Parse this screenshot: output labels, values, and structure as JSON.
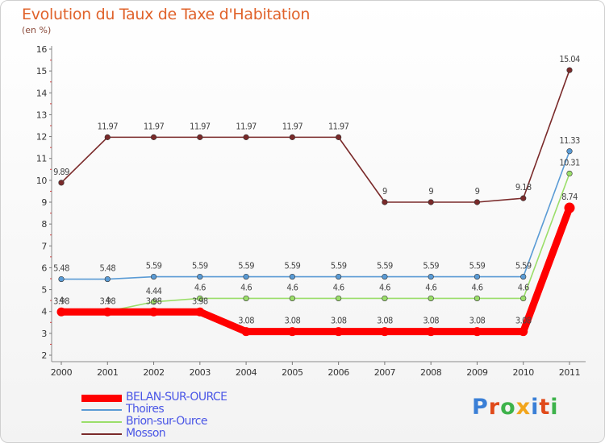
{
  "title": "Evolution du Taux de Taxe d'Habitation",
  "subtitle": "(en %)",
  "logo": {
    "letters": [
      "P",
      "r",
      "o",
      "x",
      "i",
      "t",
      "i"
    ],
    "colors": [
      "#3a7fd6",
      "#e04a1a",
      "#3db24a",
      "#f2a51c",
      "#3a7fd6",
      "#e04a1a",
      "#3db24a"
    ]
  },
  "chart_data": {
    "type": "line",
    "x": [
      "2000",
      "2001",
      "2002",
      "2003",
      "2004",
      "2005",
      "2006",
      "2007",
      "2008",
      "2009",
      "2010",
      "2011"
    ],
    "ylim": [
      2,
      16
    ],
    "yticks": [
      "2",
      "3",
      "4",
      "5",
      "6",
      "7",
      "8",
      "9",
      "10",
      "11",
      "12",
      "13",
      "14",
      "15",
      "16"
    ],
    "grid": false,
    "legend_position": "bottom-left",
    "series": [
      {
        "name": "BELAN-SUR-OURCE",
        "color": "#ff0000",
        "values": [
          3.98,
          3.98,
          3.98,
          3.98,
          3.08,
          3.08,
          3.08,
          3.08,
          3.08,
          3.08,
          3.08,
          8.74
        ],
        "labels": [
          "3.98",
          "3.98",
          "3.98",
          "3.98",
          "3.08",
          "3.08",
          "3.08",
          "3.08",
          "3.08",
          "3.08",
          "3.08",
          "8.74"
        ]
      },
      {
        "name": "Thoires",
        "color": "#5a9bd5",
        "values": [
          5.48,
          5.48,
          5.59,
          5.59,
          5.59,
          5.59,
          5.59,
          5.59,
          5.59,
          5.59,
          5.59,
          11.33
        ],
        "labels": [
          "5.48",
          "5.48",
          "5.59",
          "5.59",
          "5.59",
          "5.59",
          "5.59",
          "5.59",
          "5.59",
          "5.59",
          "5.59",
          "11.33"
        ]
      },
      {
        "name": "Brion-sur-Ource",
        "color": "#9bde6a",
        "values": [
          4,
          4,
          4.44,
          4.6,
          4.6,
          4.6,
          4.6,
          4.6,
          4.6,
          4.6,
          4.6,
          10.31
        ],
        "labels": [
          "4",
          "4",
          "4.44",
          "4.6",
          "4.6",
          "4.6",
          "4.6",
          "4.6",
          "4.6",
          "4.6",
          "4.6",
          "10.31"
        ]
      },
      {
        "name": "Mosson",
        "color": "#7a2a2a",
        "values": [
          9.89,
          11.97,
          11.97,
          11.97,
          11.97,
          11.97,
          11.97,
          9,
          9,
          9,
          9.18,
          15.04
        ],
        "labels": [
          "9.89",
          "11.97",
          "11.97",
          "11.97",
          "11.97",
          "11.97",
          "11.97",
          "9",
          "9",
          "9",
          "9.18",
          "15.04"
        ]
      }
    ]
  }
}
